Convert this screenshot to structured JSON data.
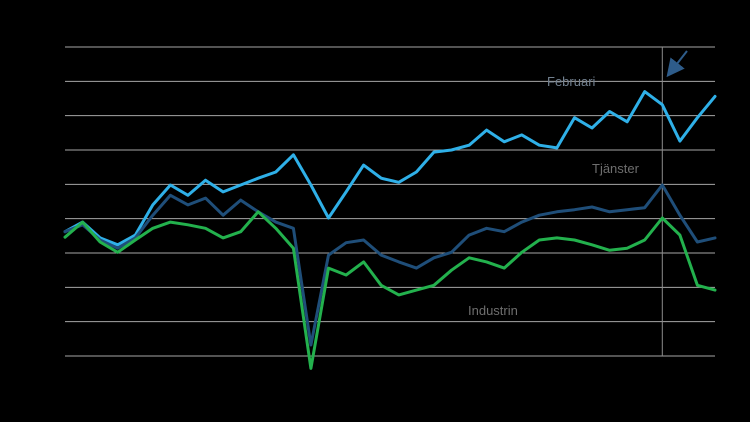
{
  "colors": {
    "background": "#000000",
    "gridline": "#a6a6a6",
    "vline": "#8c8c8c",
    "annotation_text": "#72808f",
    "series_label_text": "#6e6e6e",
    "arrow": "#2e5c8a"
  },
  "annotations": {
    "peak_label": "Februari",
    "services_label": "Tjänster",
    "industry_label": "Industrin"
  },
  "chart_data": {
    "type": "line",
    "x_count": 38,
    "ylim": [
      80,
      125
    ],
    "grid_step": 5,
    "grid_on": true,
    "legend_position": "none",
    "vline_index": 34,
    "series": [
      {
        "name": "Tjänster",
        "color": "#2fb0e8",
        "values": [
          98.1,
          99.5,
          97.2,
          96.2,
          97.6,
          102.0,
          104.9,
          103.4,
          105.6,
          103.9,
          104.9,
          105.9,
          106.8,
          109.3,
          104.9,
          100.1,
          103.9,
          107.8,
          105.9,
          105.3,
          106.8,
          109.7,
          110.0,
          110.7,
          112.9,
          111.2,
          112.2,
          110.7,
          110.3,
          114.7,
          113.2,
          115.6,
          114.1,
          118.5,
          116.6,
          111.3,
          114.7,
          117.8
        ]
      },
      {
        "name": "",
        "color": "#1f4e79",
        "values": [
          98.1,
          99.1,
          96.9,
          95.7,
          97.2,
          100.5,
          103.4,
          102.0,
          103.0,
          100.5,
          102.7,
          101.0,
          99.5,
          98.6,
          81.6,
          94.7,
          96.5,
          96.9,
          94.7,
          93.7,
          92.8,
          94.3,
          95.1,
          97.6,
          98.6,
          98.1,
          99.5,
          100.5,
          101.0,
          101.3,
          101.7,
          101.0,
          101.3,
          101.6,
          104.9,
          100.5,
          96.6,
          97.2
        ]
      },
      {
        "name": "Industrin",
        "color": "#23b14d",
        "values": [
          97.3,
          99.5,
          96.6,
          95.1,
          96.9,
          98.6,
          99.5,
          99.1,
          98.6,
          97.2,
          98.1,
          101.0,
          98.6,
          95.7,
          78.2,
          92.8,
          91.8,
          93.7,
          90.3,
          88.9,
          89.6,
          90.3,
          92.5,
          94.3,
          93.7,
          92.8,
          95.1,
          96.9,
          97.2,
          96.9,
          96.2,
          95.4,
          95.7,
          96.9,
          100.1,
          97.6,
          90.3,
          89.6
        ]
      }
    ]
  }
}
